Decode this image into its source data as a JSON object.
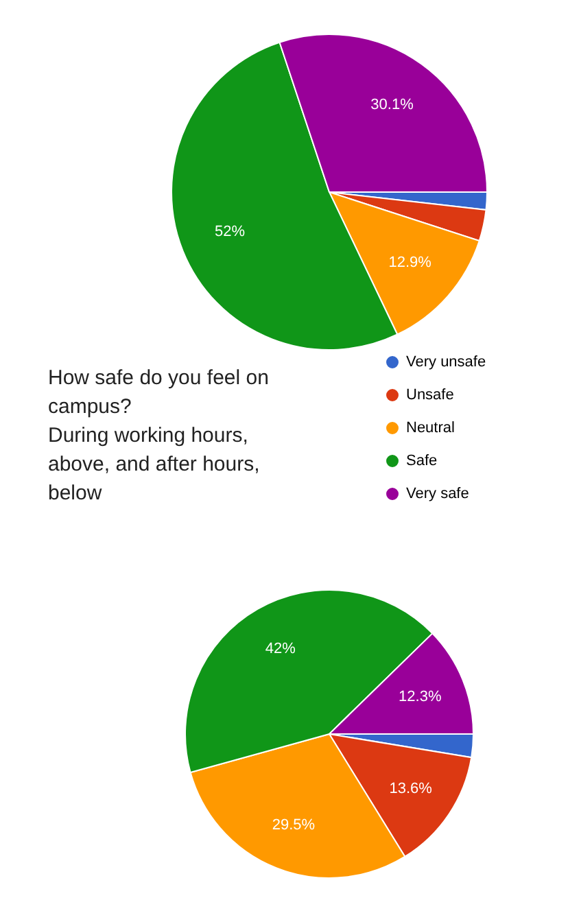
{
  "chart_data": [
    {
      "type": "pie",
      "title": "How safe do you feel on campus?\nDuring working hours, above, and after hours, below",
      "categories": [
        "Very unsafe",
        "Unsafe",
        "Neutral",
        "Safe",
        "Very safe"
      ],
      "values": [
        1.8,
        3.2,
        12.9,
        52,
        30.1
      ],
      "colors": [
        "#3366cc",
        "#dc3912",
        "#ff9900",
        "#109618",
        "#990099"
      ],
      "value_labels": [
        null,
        null,
        "12.9%",
        "52%",
        "30.1%"
      ],
      "legend": "right"
    },
    {
      "type": "pie",
      "categories": [
        null,
        null,
        null,
        null,
        null
      ],
      "values": [
        2.6,
        13.6,
        29.5,
        42,
        12.3
      ],
      "colors": [
        "#3366cc",
        "#dc3912",
        "#ff9900",
        "#109618",
        "#990099"
      ],
      "value_labels": [
        null,
        "13.6%",
        "29.5%",
        "42%",
        "12.3%"
      ],
      "legend": false
    }
  ]
}
